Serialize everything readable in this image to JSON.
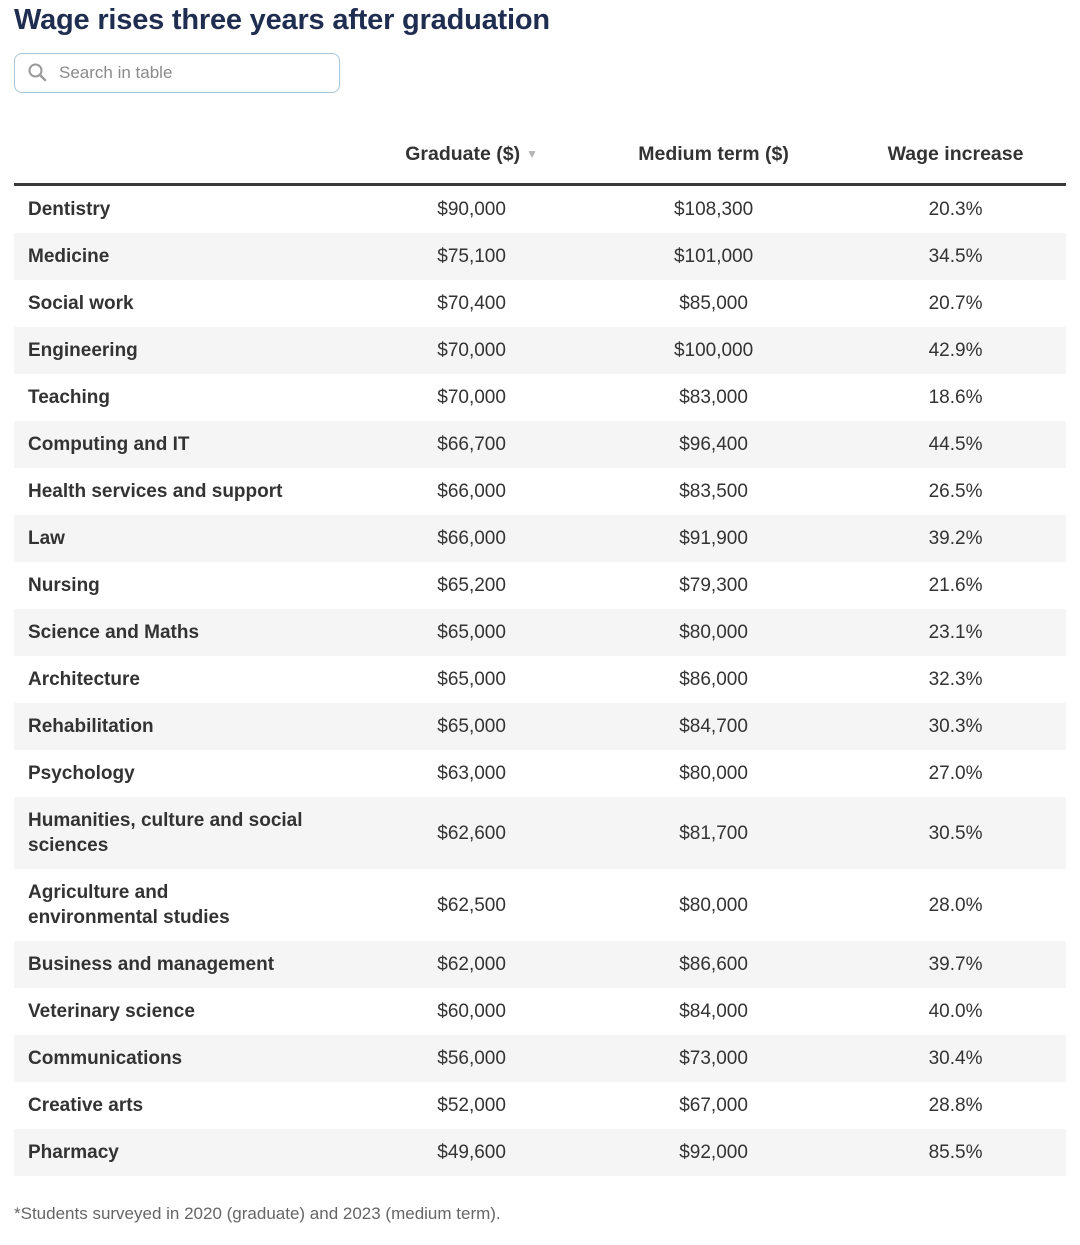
{
  "title": "Wage rises three years after graduation",
  "search": {
    "placeholder": "Search in table"
  },
  "icons": {
    "sort_descending": "▼"
  },
  "colors": {
    "title_navy": "#1f2d50",
    "body_text": "#333333",
    "zebra_row": "#f5f5f5",
    "search_border": "#a7c4d8",
    "footnote_gray": "#666666"
  },
  "table": {
    "columns": {
      "field": "",
      "graduate": "Graduate ($)",
      "medium": "Medium term ($)",
      "increase": "Wage increase"
    },
    "sorted_column": "graduate",
    "sort_direction": "descending",
    "rows": [
      {
        "field": "Dentistry",
        "graduate": "$90,000",
        "medium": "$108,300",
        "increase": "20.3%"
      },
      {
        "field": "Medicine",
        "graduate": "$75,100",
        "medium": "$101,000",
        "increase": "34.5%"
      },
      {
        "field": "Social work",
        "graduate": "$70,400",
        "medium": "$85,000",
        "increase": "20.7%"
      },
      {
        "field": "Engineering",
        "graduate": "$70,000",
        "medium": "$100,000",
        "increase": "42.9%"
      },
      {
        "field": "Teaching",
        "graduate": "$70,000",
        "medium": "$83,000",
        "increase": "18.6%"
      },
      {
        "field": "Computing and IT",
        "graduate": "$66,700",
        "medium": "$96,400",
        "increase": "44.5%"
      },
      {
        "field": "Health services and support",
        "graduate": "$66,000",
        "medium": "$83,500",
        "increase": "26.5%"
      },
      {
        "field": "Law",
        "graduate": "$66,000",
        "medium": "$91,900",
        "increase": "39.2%"
      },
      {
        "field": "Nursing",
        "graduate": "$65,200",
        "medium": "$79,300",
        "increase": "21.6%"
      },
      {
        "field": "Science and Maths",
        "graduate": "$65,000",
        "medium": "$80,000",
        "increase": "23.1%"
      },
      {
        "field": "Architecture",
        "graduate": "$65,000",
        "medium": "$86,000",
        "increase": "32.3%"
      },
      {
        "field": "Rehabilitation",
        "graduate": "$65,000",
        "medium": "$84,700",
        "increase": "30.3%"
      },
      {
        "field": "Psychology",
        "graduate": "$63,000",
        "medium": "$80,000",
        "increase": "27.0%"
      },
      {
        "field": "Humanities, culture and social\nsciences",
        "graduate": "$62,600",
        "medium": "$81,700",
        "increase": "30.5%"
      },
      {
        "field": "Agriculture and\nenvironmental studies",
        "graduate": "$62,500",
        "medium": "$80,000",
        "increase": "28.0%"
      },
      {
        "field": "Business and management",
        "graduate": "$62,000",
        "medium": "$86,600",
        "increase": "39.7%"
      },
      {
        "field": "Veterinary science",
        "graduate": "$60,000",
        "medium": "$84,000",
        "increase": "40.0%"
      },
      {
        "field": "Communications",
        "graduate": "$56,000",
        "medium": "$73,000",
        "increase": "30.4%"
      },
      {
        "field": "Creative arts",
        "graduate": "$52,000",
        "medium": "$67,000",
        "increase": "28.8%"
      },
      {
        "field": "Pharmacy",
        "graduate": "$49,600",
        "medium": "$92,000",
        "increase": "85.5%"
      }
    ]
  },
  "footnote": "*Students surveyed in 2020 (graduate) and 2023 (medium term)."
}
